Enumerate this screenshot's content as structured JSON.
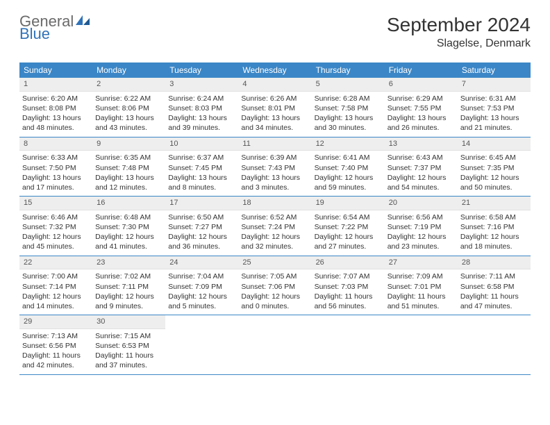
{
  "logo": {
    "word1": "General",
    "word2": "Blue"
  },
  "title": "September 2024",
  "location": "Slagelse, Denmark",
  "colors": {
    "header_bg": "#3b86c6",
    "daynum_bg": "#eeeeee",
    "row_border": "#3b86c6",
    "logo_gray": "#6a6a6a",
    "logo_blue": "#2f72b8"
  },
  "weekdays": [
    "Sunday",
    "Monday",
    "Tuesday",
    "Wednesday",
    "Thursday",
    "Friday",
    "Saturday"
  ],
  "days": [
    {
      "n": "1",
      "sunrise": "Sunrise: 6:20 AM",
      "sunset": "Sunset: 8:08 PM",
      "daylight": "Daylight: 13 hours and 48 minutes."
    },
    {
      "n": "2",
      "sunrise": "Sunrise: 6:22 AM",
      "sunset": "Sunset: 8:06 PM",
      "daylight": "Daylight: 13 hours and 43 minutes."
    },
    {
      "n": "3",
      "sunrise": "Sunrise: 6:24 AM",
      "sunset": "Sunset: 8:03 PM",
      "daylight": "Daylight: 13 hours and 39 minutes."
    },
    {
      "n": "4",
      "sunrise": "Sunrise: 6:26 AM",
      "sunset": "Sunset: 8:01 PM",
      "daylight": "Daylight: 13 hours and 34 minutes."
    },
    {
      "n": "5",
      "sunrise": "Sunrise: 6:28 AM",
      "sunset": "Sunset: 7:58 PM",
      "daylight": "Daylight: 13 hours and 30 minutes."
    },
    {
      "n": "6",
      "sunrise": "Sunrise: 6:29 AM",
      "sunset": "Sunset: 7:55 PM",
      "daylight": "Daylight: 13 hours and 26 minutes."
    },
    {
      "n": "7",
      "sunrise": "Sunrise: 6:31 AM",
      "sunset": "Sunset: 7:53 PM",
      "daylight": "Daylight: 13 hours and 21 minutes."
    },
    {
      "n": "8",
      "sunrise": "Sunrise: 6:33 AM",
      "sunset": "Sunset: 7:50 PM",
      "daylight": "Daylight: 13 hours and 17 minutes."
    },
    {
      "n": "9",
      "sunrise": "Sunrise: 6:35 AM",
      "sunset": "Sunset: 7:48 PM",
      "daylight": "Daylight: 13 hours and 12 minutes."
    },
    {
      "n": "10",
      "sunrise": "Sunrise: 6:37 AM",
      "sunset": "Sunset: 7:45 PM",
      "daylight": "Daylight: 13 hours and 8 minutes."
    },
    {
      "n": "11",
      "sunrise": "Sunrise: 6:39 AM",
      "sunset": "Sunset: 7:43 PM",
      "daylight": "Daylight: 13 hours and 3 minutes."
    },
    {
      "n": "12",
      "sunrise": "Sunrise: 6:41 AM",
      "sunset": "Sunset: 7:40 PM",
      "daylight": "Daylight: 12 hours and 59 minutes."
    },
    {
      "n": "13",
      "sunrise": "Sunrise: 6:43 AM",
      "sunset": "Sunset: 7:37 PM",
      "daylight": "Daylight: 12 hours and 54 minutes."
    },
    {
      "n": "14",
      "sunrise": "Sunrise: 6:45 AM",
      "sunset": "Sunset: 7:35 PM",
      "daylight": "Daylight: 12 hours and 50 minutes."
    },
    {
      "n": "15",
      "sunrise": "Sunrise: 6:46 AM",
      "sunset": "Sunset: 7:32 PM",
      "daylight": "Daylight: 12 hours and 45 minutes."
    },
    {
      "n": "16",
      "sunrise": "Sunrise: 6:48 AM",
      "sunset": "Sunset: 7:30 PM",
      "daylight": "Daylight: 12 hours and 41 minutes."
    },
    {
      "n": "17",
      "sunrise": "Sunrise: 6:50 AM",
      "sunset": "Sunset: 7:27 PM",
      "daylight": "Daylight: 12 hours and 36 minutes."
    },
    {
      "n": "18",
      "sunrise": "Sunrise: 6:52 AM",
      "sunset": "Sunset: 7:24 PM",
      "daylight": "Daylight: 12 hours and 32 minutes."
    },
    {
      "n": "19",
      "sunrise": "Sunrise: 6:54 AM",
      "sunset": "Sunset: 7:22 PM",
      "daylight": "Daylight: 12 hours and 27 minutes."
    },
    {
      "n": "20",
      "sunrise": "Sunrise: 6:56 AM",
      "sunset": "Sunset: 7:19 PM",
      "daylight": "Daylight: 12 hours and 23 minutes."
    },
    {
      "n": "21",
      "sunrise": "Sunrise: 6:58 AM",
      "sunset": "Sunset: 7:16 PM",
      "daylight": "Daylight: 12 hours and 18 minutes."
    },
    {
      "n": "22",
      "sunrise": "Sunrise: 7:00 AM",
      "sunset": "Sunset: 7:14 PM",
      "daylight": "Daylight: 12 hours and 14 minutes."
    },
    {
      "n": "23",
      "sunrise": "Sunrise: 7:02 AM",
      "sunset": "Sunset: 7:11 PM",
      "daylight": "Daylight: 12 hours and 9 minutes."
    },
    {
      "n": "24",
      "sunrise": "Sunrise: 7:04 AM",
      "sunset": "Sunset: 7:09 PM",
      "daylight": "Daylight: 12 hours and 5 minutes."
    },
    {
      "n": "25",
      "sunrise": "Sunrise: 7:05 AM",
      "sunset": "Sunset: 7:06 PM",
      "daylight": "Daylight: 12 hours and 0 minutes."
    },
    {
      "n": "26",
      "sunrise": "Sunrise: 7:07 AM",
      "sunset": "Sunset: 7:03 PM",
      "daylight": "Daylight: 11 hours and 56 minutes."
    },
    {
      "n": "27",
      "sunrise": "Sunrise: 7:09 AM",
      "sunset": "Sunset: 7:01 PM",
      "daylight": "Daylight: 11 hours and 51 minutes."
    },
    {
      "n": "28",
      "sunrise": "Sunrise: 7:11 AM",
      "sunset": "Sunset: 6:58 PM",
      "daylight": "Daylight: 11 hours and 47 minutes."
    },
    {
      "n": "29",
      "sunrise": "Sunrise: 7:13 AM",
      "sunset": "Sunset: 6:56 PM",
      "daylight": "Daylight: 11 hours and 42 minutes."
    },
    {
      "n": "30",
      "sunrise": "Sunrise: 7:15 AM",
      "sunset": "Sunset: 6:53 PM",
      "daylight": "Daylight: 11 hours and 37 minutes."
    }
  ]
}
